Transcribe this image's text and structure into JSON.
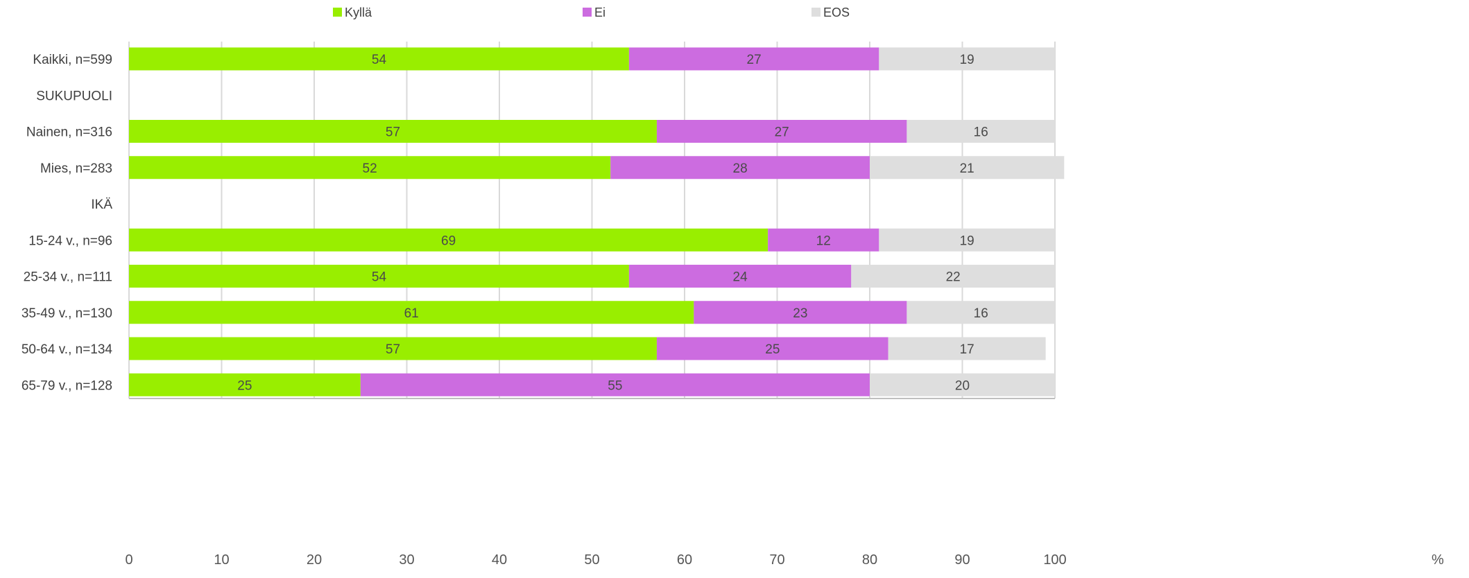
{
  "chart_data": {
    "type": "bar",
    "orientation": "horizontal",
    "stacked": true,
    "categories": [
      "Kaikki, n=599",
      "SUKUPUOLI",
      "Nainen, n=316",
      "Mies, n=283",
      "IKÄ",
      "15-24 v., n=96",
      "25-34 v., n=111",
      "35-49 v., n=130",
      "50-64 v., n=134",
      "65-79 v., n=128"
    ],
    "series": [
      {
        "name": "Kyllä",
        "color": "#99ee00",
        "values": [
          54,
          null,
          57,
          52,
          null,
          69,
          54,
          61,
          57,
          25
        ]
      },
      {
        "name": "Ei",
        "color": "#cc6ce0",
        "values": [
          27,
          null,
          27,
          28,
          null,
          12,
          24,
          23,
          25,
          55
        ]
      },
      {
        "name": "EOS",
        "color": "#dedede",
        "values": [
          19,
          null,
          16,
          21,
          null,
          19,
          22,
          16,
          17,
          20
        ]
      }
    ],
    "xlim": [
      0,
      100
    ],
    "xticks": [
      "0",
      "10",
      "20",
      "30",
      "40",
      "50",
      "60",
      "70",
      "80",
      "90",
      "100"
    ],
    "x_unit": "%",
    "grid": true,
    "legend": "top-center"
  }
}
